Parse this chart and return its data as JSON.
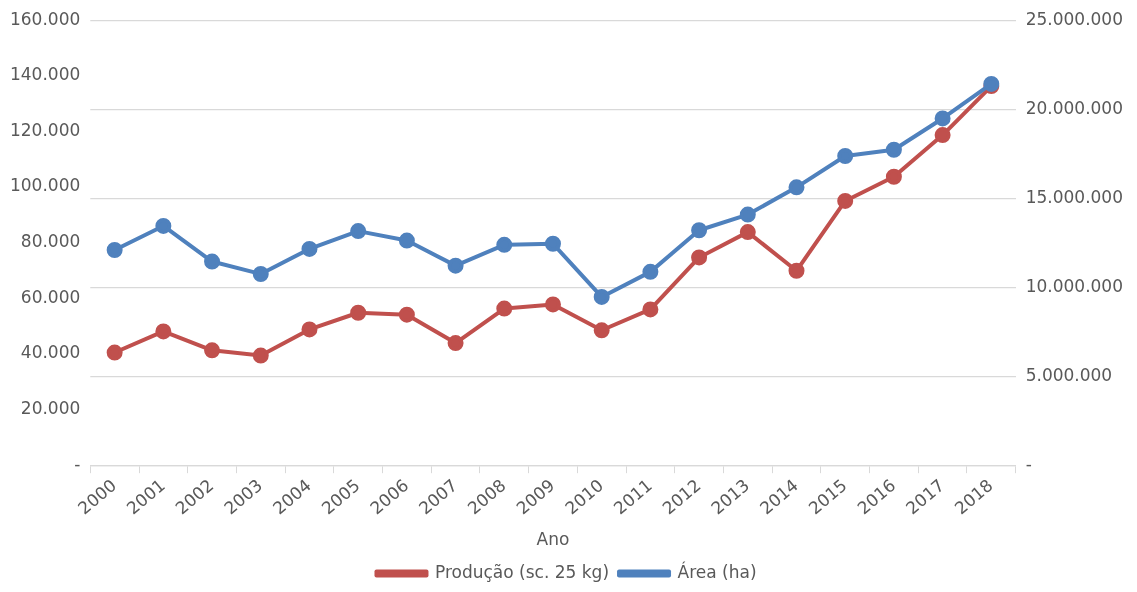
{
  "chart_data": {
    "type": "line",
    "xlabel": "Ano",
    "categories": [
      "2000",
      "2001",
      "2002",
      "2003",
      "2004",
      "2005",
      "2006",
      "2007",
      "2008",
      "2009",
      "2010",
      "2011",
      "2012",
      "2013",
      "2014",
      "2015",
      "2016",
      "2017",
      "2018"
    ],
    "series": [
      {
        "name": "Produção (sc. 25 kg)",
        "color": "#c0504d",
        "values": [
          40500,
          48100,
          41300,
          39400,
          48800,
          54800,
          54100,
          43900,
          56300,
          57800,
          48500,
          56000,
          74700,
          83800,
          69900,
          95000,
          103700,
          118700,
          136300
        ]
      },
      {
        "name": "Área (ha)",
        "color": "#4f81bd",
        "axis": "y2",
        "values": [
          12090000,
          13440000,
          11440000,
          10740000,
          12150000,
          13150000,
          12620000,
          11210000,
          12380000,
          12440000,
          9450000,
          10860000,
          13200000,
          14080000,
          15610000,
          17370000,
          17720000,
          19480000,
          21420000
        ]
      }
    ],
    "ylim": [
      0,
      160000
    ],
    "yticks": [
      {
        "value": 0,
        "label": "-"
      },
      {
        "value": 20000,
        "label": "20.000"
      },
      {
        "value": 40000,
        "label": "40.000"
      },
      {
        "value": 60000,
        "label": "60.000"
      },
      {
        "value": 80000,
        "label": "80.000"
      },
      {
        "value": 100000,
        "label": "100.000"
      },
      {
        "value": 120000,
        "label": "120.000"
      },
      {
        "value": 140000,
        "label": "140.000"
      },
      {
        "value": 160000,
        "label": "160.000"
      }
    ],
    "y2lim": [
      0,
      25000000
    ],
    "y2ticks": [
      {
        "value": 0,
        "label": "-"
      },
      {
        "value": 5000000,
        "label": "5.000.000"
      },
      {
        "value": 10000000,
        "label": "10.000.000"
      },
      {
        "value": 15000000,
        "label": "15.000.000"
      },
      {
        "value": 20000000,
        "label": "20.000.000"
      },
      {
        "value": 25000000,
        "label": "25.000.000"
      }
    ],
    "grid": "y",
    "legend": "bottom",
    "marker": "circle",
    "line_style": "solid"
  }
}
